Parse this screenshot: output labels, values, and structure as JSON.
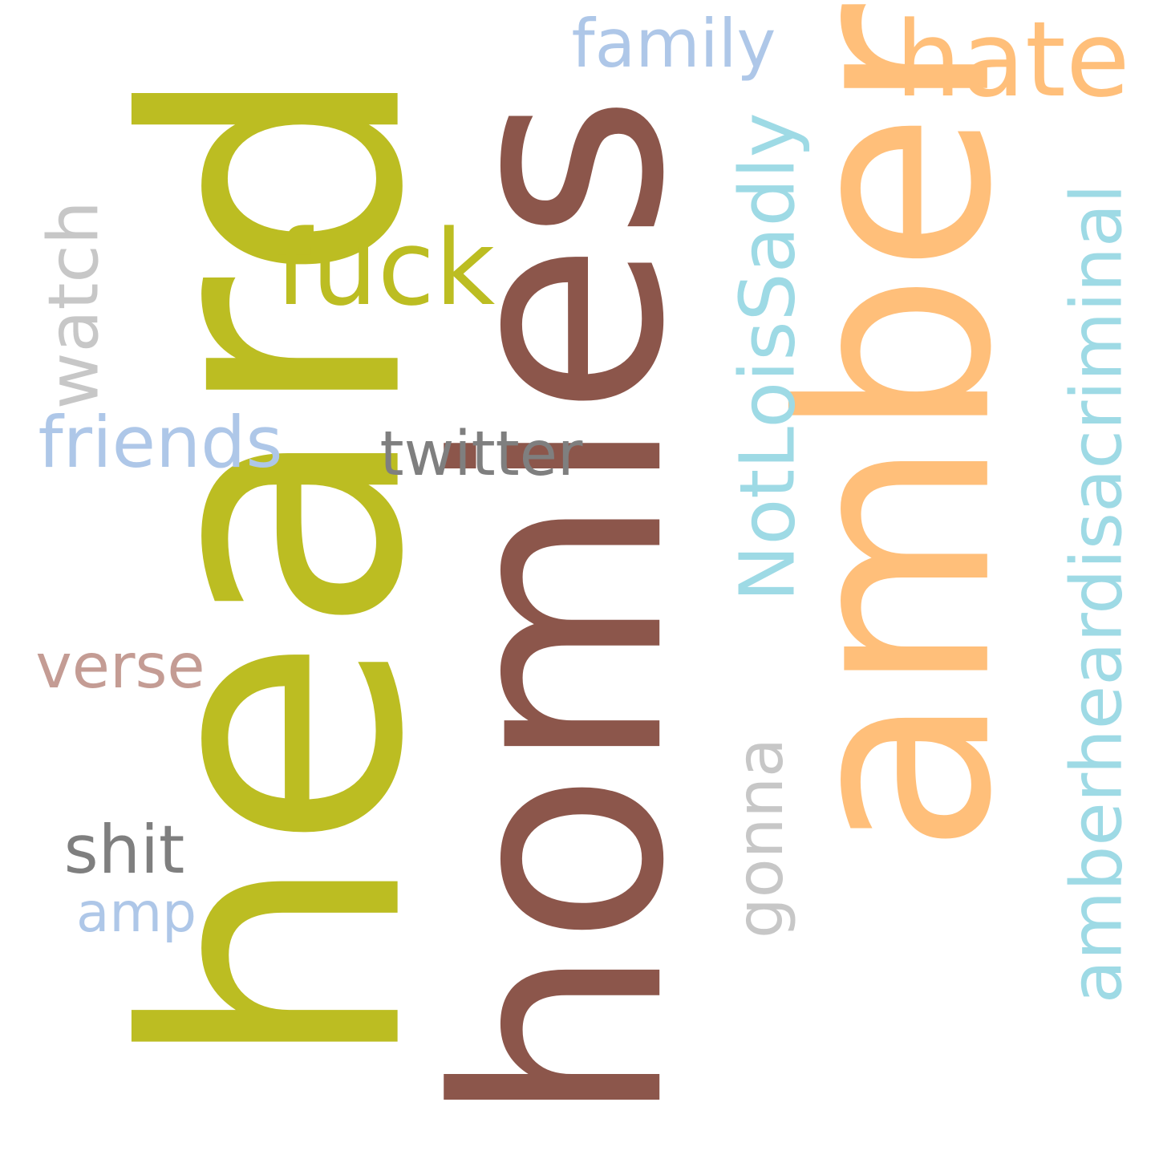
{
  "words": [
    {
      "text": "heard",
      "color": "#bcbd22",
      "orientation": "vertical"
    },
    {
      "text": "homies",
      "color": "#8c564b",
      "orientation": "vertical"
    },
    {
      "text": "amber",
      "color": "#ffbf7a",
      "orientation": "vertical"
    },
    {
      "text": "hate",
      "color": "#ffbf7a",
      "orientation": "horizontal"
    },
    {
      "text": "family",
      "color": "#aec7e8",
      "orientation": "horizontal"
    },
    {
      "text": "fuck",
      "color": "#bcbd22",
      "orientation": "horizontal"
    },
    {
      "text": "twitter",
      "color": "#7f7f7f",
      "orientation": "horizontal"
    },
    {
      "text": "friends",
      "color": "#aec7e8",
      "orientation": "horizontal"
    },
    {
      "text": "watch",
      "color": "#c7c7c7",
      "orientation": "vertical"
    },
    {
      "text": "verse",
      "color": "#c49c94",
      "orientation": "horizontal"
    },
    {
      "text": "shit",
      "color": "#7f7f7f",
      "orientation": "horizontal"
    },
    {
      "text": "amp",
      "color": "#aec7e8",
      "orientation": "horizontal"
    },
    {
      "text": "NotLoisSadly",
      "color": "#9edae5",
      "orientation": "vertical"
    },
    {
      "text": "gonna",
      "color": "#c7c7c7",
      "orientation": "vertical"
    },
    {
      "text": "amberheardisacriminal",
      "color": "#9edae5",
      "orientation": "vertical"
    }
  ]
}
